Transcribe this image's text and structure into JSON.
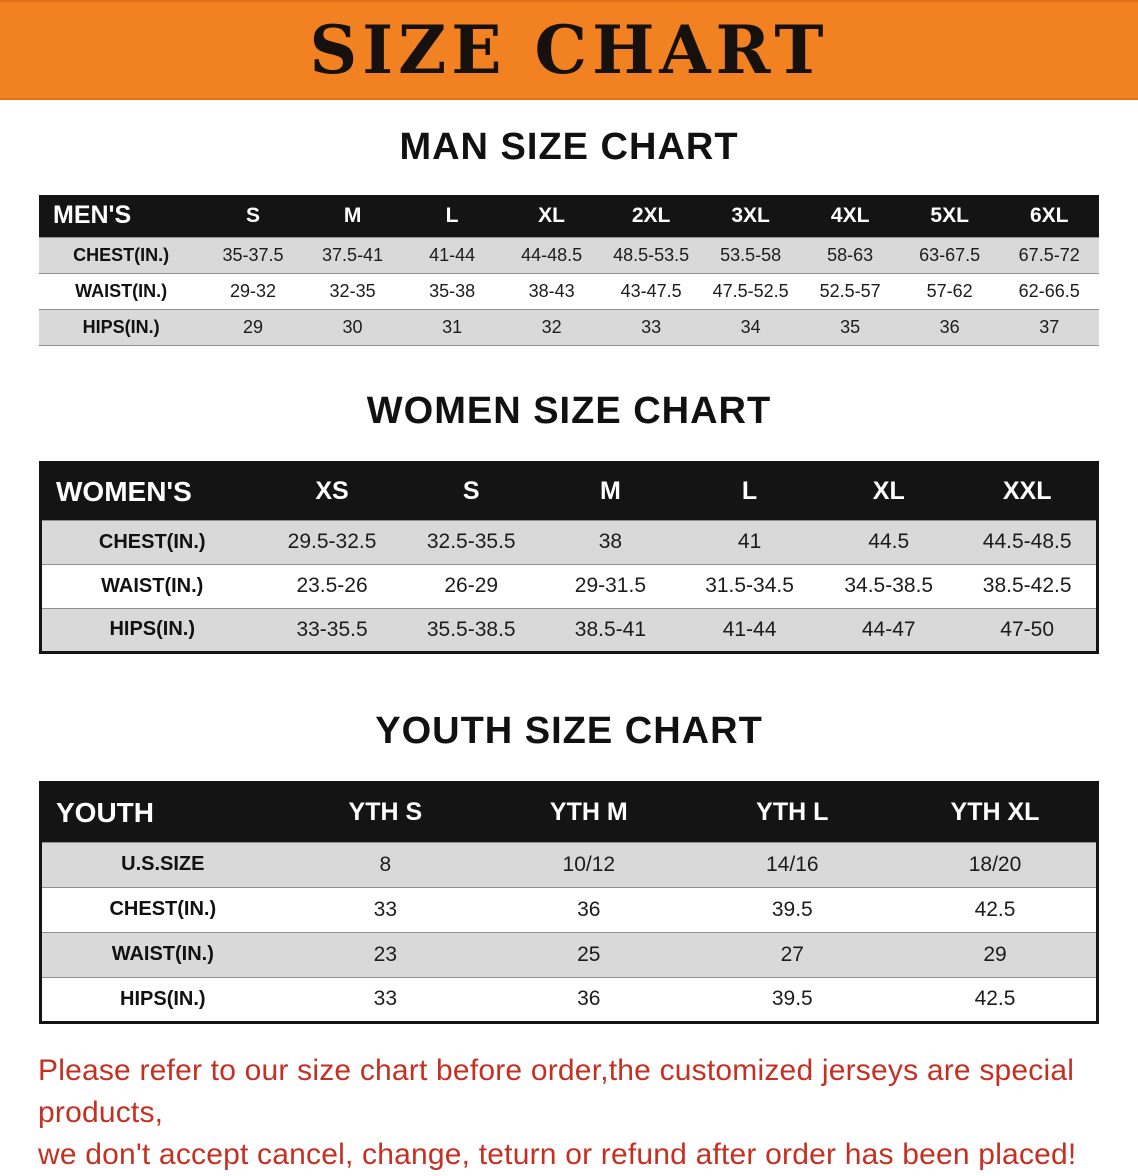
{
  "colors": {
    "banner_bg": "#f28122",
    "header_bg": "#141414",
    "row_stripe": "#d9d9d9",
    "disclaimer_red": "#c53022"
  },
  "banner": {
    "title": "SIZE CHART"
  },
  "sections": [
    {
      "id": "men",
      "heading": "MAN SIZE CHART",
      "table": {
        "header": [
          "MEN'S",
          "S",
          "M",
          "L",
          "XL",
          "2XL",
          "3XL",
          "4XL",
          "5XL",
          "6XL"
        ],
        "rows": [
          {
            "label": "CHEST(IN.)",
            "values": [
              "35-37.5",
              "37.5-41",
              "41-44",
              "44-48.5",
              "48.5-53.5",
              "53.5-58",
              "58-63",
              "63-67.5",
              "67.5-72"
            ]
          },
          {
            "label": "WAIST(IN.)",
            "values": [
              "29-32",
              "32-35",
              "35-38",
              "38-43",
              "43-47.5",
              "47.5-52.5",
              "52.5-57",
              "57-62",
              "62-66.5"
            ]
          },
          {
            "label": "HIPS(IN.)",
            "values": [
              "29",
              "30",
              "31",
              "32",
              "33",
              "34",
              "35",
              "36",
              "37"
            ]
          }
        ]
      }
    },
    {
      "id": "women",
      "heading": "WOMEN SIZE CHART",
      "table": {
        "header": [
          "WOMEN'S",
          "XS",
          "S",
          "M",
          "L",
          "XL",
          "XXL"
        ],
        "rows": [
          {
            "label": "CHEST(IN.)",
            "values": [
              "29.5-32.5",
              "32.5-35.5",
              "38",
              "41",
              "44.5",
              "44.5-48.5"
            ]
          },
          {
            "label": "WAIST(IN.)",
            "values": [
              "23.5-26",
              "26-29",
              "29-31.5",
              "31.5-34.5",
              "34.5-38.5",
              "38.5-42.5"
            ]
          },
          {
            "label": "HIPS(IN.)",
            "values": [
              "33-35.5",
              "35.5-38.5",
              "38.5-41",
              "41-44",
              "44-47",
              "47-50"
            ]
          }
        ]
      }
    },
    {
      "id": "youth",
      "heading": "YOUTH SIZE CHART",
      "table": {
        "header": [
          "YOUTH",
          "YTH S",
          "YTH M",
          "YTH L",
          "YTH XL"
        ],
        "rows": [
          {
            "label": "U.S.SIZE",
            "values": [
              "8",
              "10/12",
              "14/16",
              "18/20"
            ]
          },
          {
            "label": "CHEST(IN.)",
            "values": [
              "33",
              "36",
              "39.5",
              "42.5"
            ]
          },
          {
            "label": "WAIST(IN.)",
            "values": [
              "23",
              "25",
              "27",
              "29"
            ]
          },
          {
            "label": "HIPS(IN.)",
            "values": [
              "33",
              "36",
              "39.5",
              "42.5"
            ]
          }
        ]
      }
    }
  ],
  "disclaimer": {
    "lines": [
      "Please refer to our size chart before order,the customized jerseys are special products,",
      "we don't accept cancel, change, teturn or refund after order has been placed!"
    ]
  }
}
